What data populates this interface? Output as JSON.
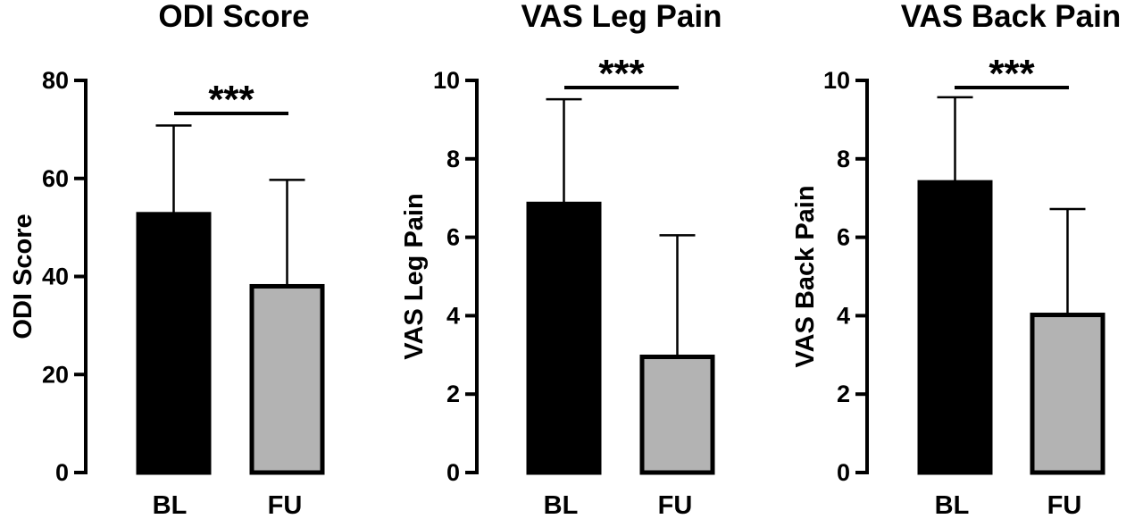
{
  "chart_data": [
    {
      "type": "bar",
      "title": "ODI Score",
      "ylabel": "ODI Score",
      "xlabel": "",
      "ylim": [
        0,
        80
      ],
      "yticks": [
        0,
        20,
        40,
        60,
        80
      ],
      "categories": [
        "BL",
        "FU"
      ],
      "values": [
        52.7,
        38.0
      ],
      "error_upper": [
        70.8,
        59.7
      ],
      "bar_colors": [
        "#000000",
        "#b3b3b3"
      ],
      "significance": "***",
      "grid": false
    },
    {
      "type": "bar",
      "title": "VAS Leg Pain",
      "ylabel": "VAS Leg Pain",
      "xlabel": "",
      "ylim": [
        0,
        10
      ],
      "yticks": [
        0,
        2,
        4,
        6,
        8,
        10
      ],
      "categories": [
        "BL",
        "FU"
      ],
      "values": [
        6.85,
        2.95
      ],
      "error_upper": [
        9.52,
        6.05
      ],
      "bar_colors": [
        "#000000",
        "#b3b3b3"
      ],
      "significance": "***",
      "grid": false
    },
    {
      "type": "bar",
      "title": "VAS Back Pain",
      "ylabel": "VAS Back Pain",
      "xlabel": "",
      "ylim": [
        0,
        10
      ],
      "yticks": [
        0,
        2,
        4,
        6,
        8,
        10
      ],
      "categories": [
        "BL",
        "FU"
      ],
      "values": [
        7.4,
        4.02
      ],
      "error_upper": [
        9.57,
        6.72
      ],
      "bar_colors": [
        "#000000",
        "#b3b3b3"
      ],
      "significance": "***",
      "grid": false
    }
  ]
}
